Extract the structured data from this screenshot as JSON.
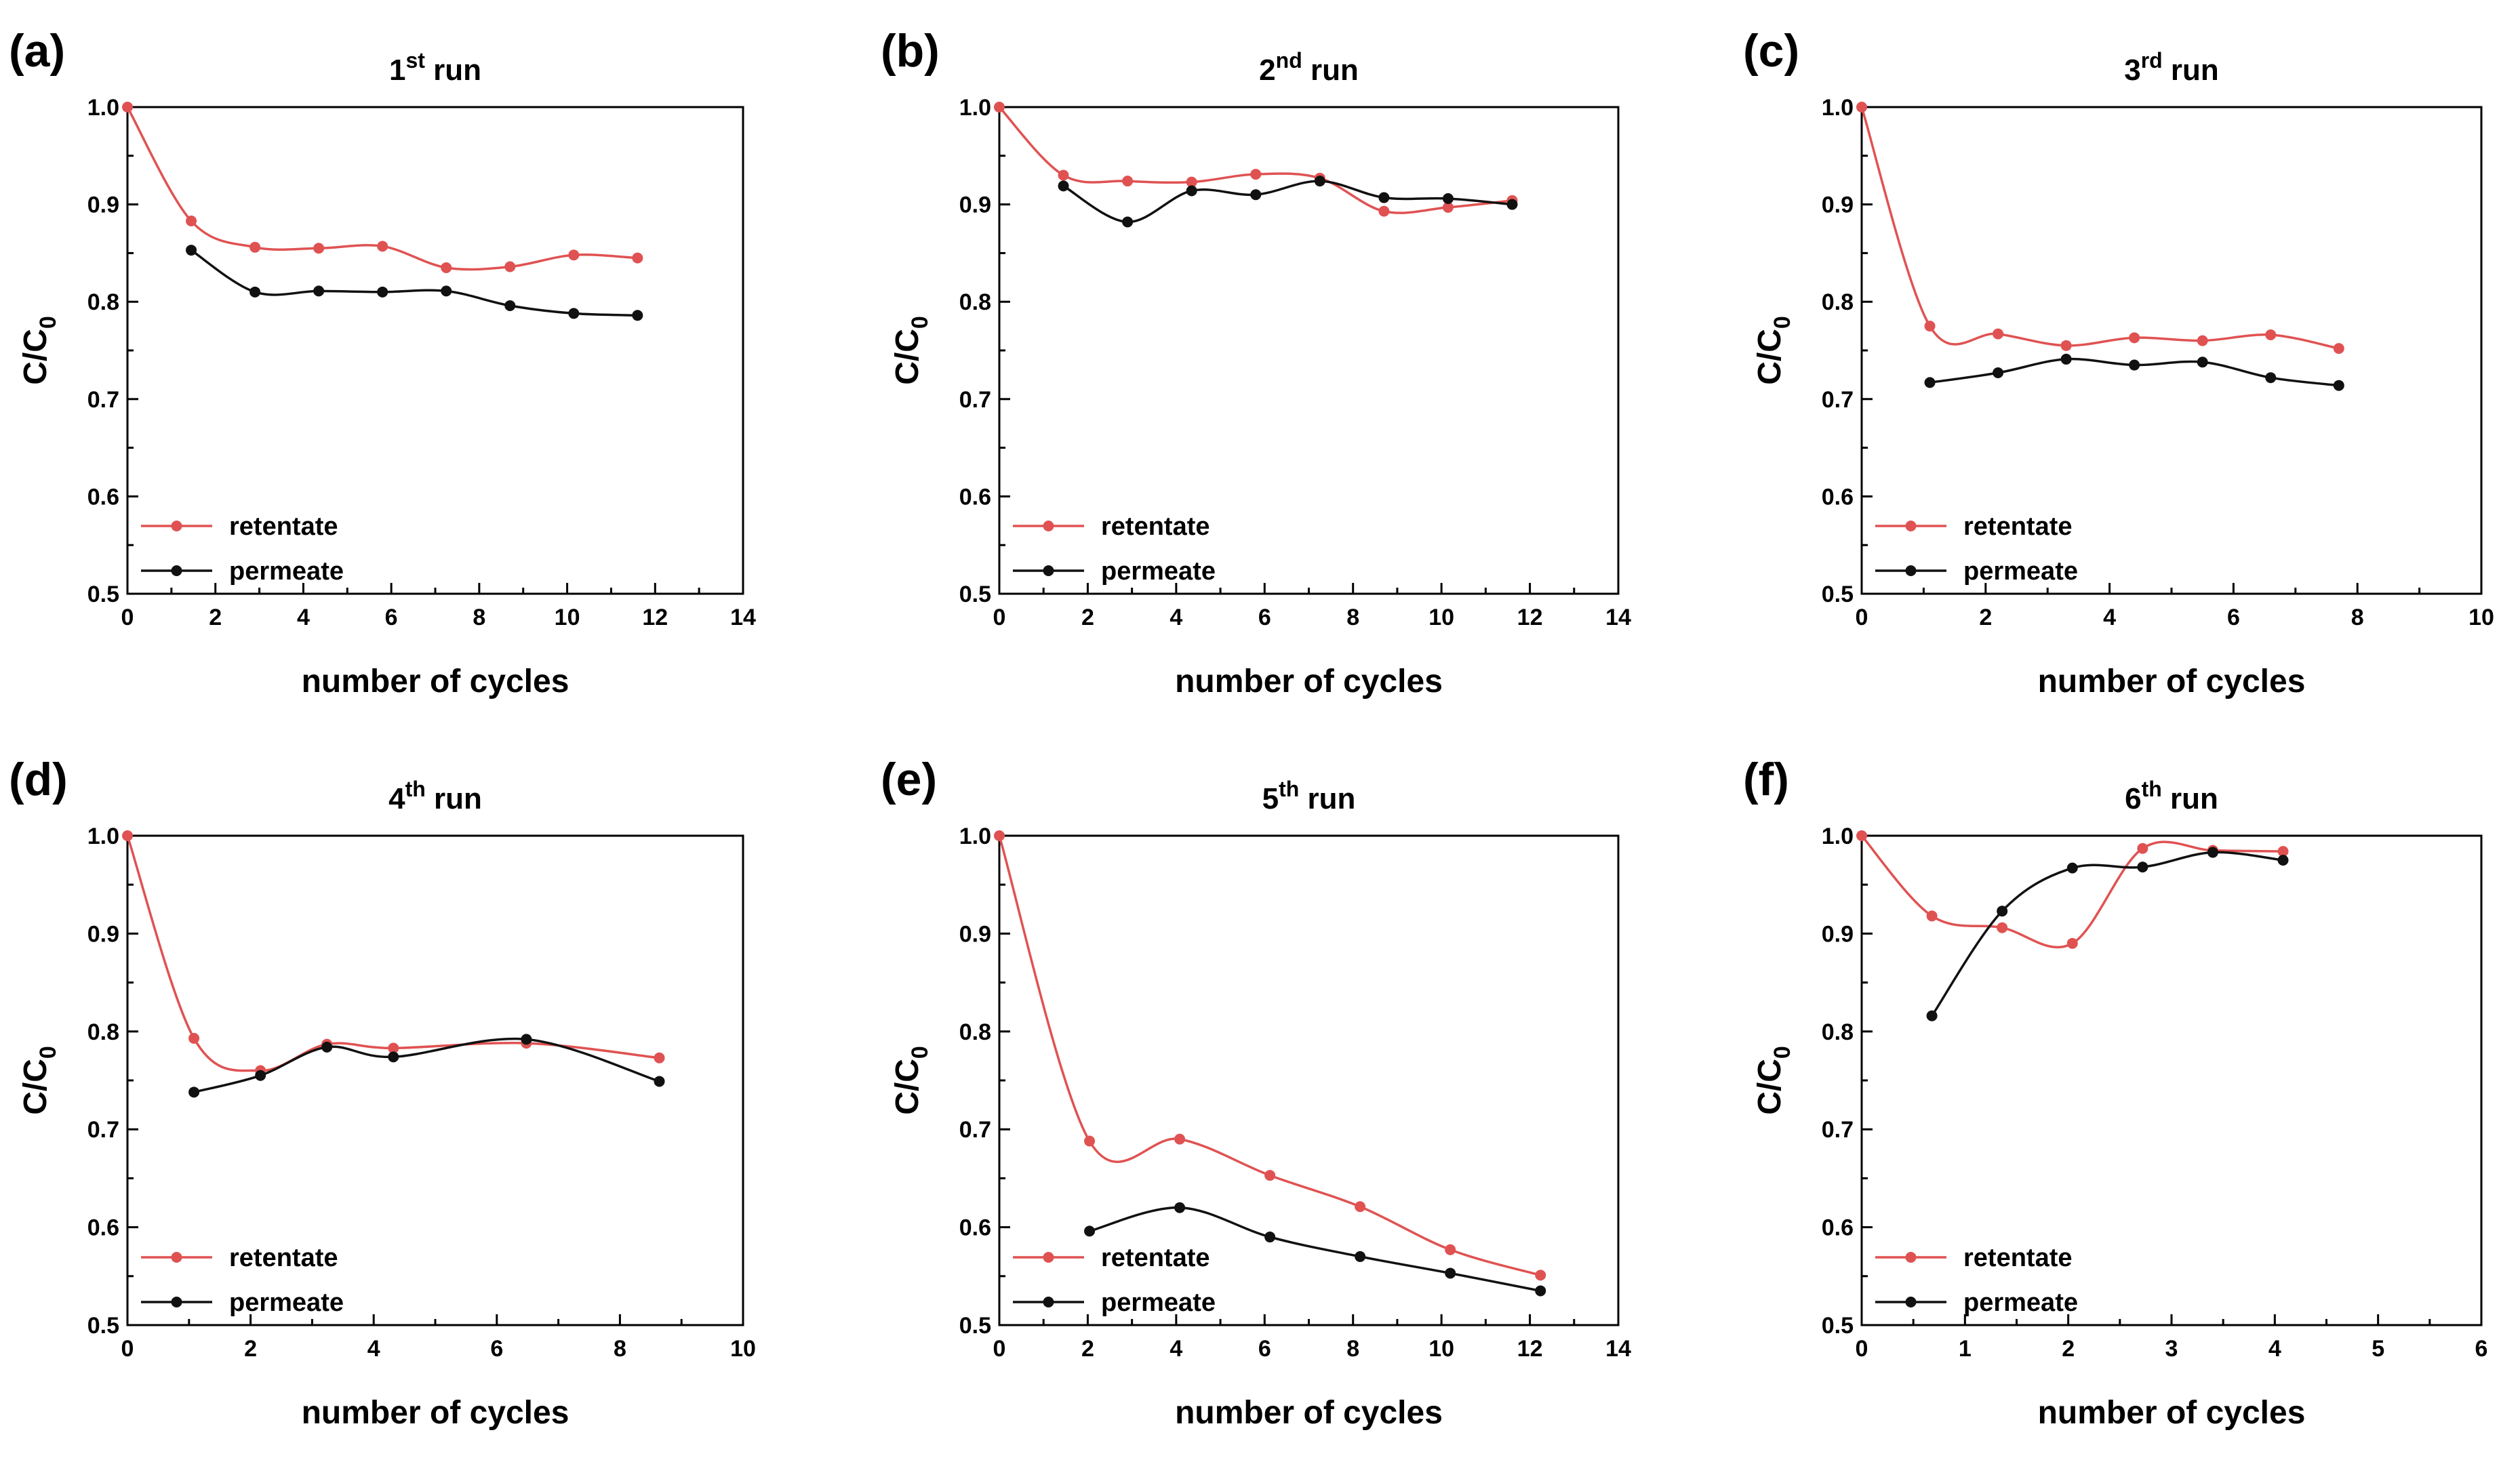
{
  "chart_data": [
    {
      "panel": "(a)",
      "type": "line",
      "title_main": "1",
      "title_sup": "st",
      "title_rest": " run",
      "xlabel": "number of cycles",
      "ylabel_main": "C/C",
      "ylabel_sub": "0",
      "xlim": [
        0,
        14
      ],
      "xticks": [
        "0",
        "2",
        "4",
        "6",
        "8",
        "10",
        "12",
        "14"
      ],
      "ylim": [
        0.5,
        1.0
      ],
      "yticks": [
        "0.5",
        "0.6",
        "0.7",
        "0.8",
        "0.9",
        "1.0"
      ],
      "legend_position": "bottom-left",
      "series": [
        {
          "name": "retentate",
          "color": "#e05252",
          "x": [
            0,
            1.45,
            2.9,
            4.35,
            5.8,
            7.25,
            8.7,
            10.15,
            11.6
          ],
          "y": [
            1.0,
            0.883,
            0.856,
            0.855,
            0.857,
            0.835,
            0.836,
            0.848,
            0.845
          ]
        },
        {
          "name": "permeate",
          "color": "#111111",
          "x": [
            1.45,
            2.9,
            4.35,
            5.8,
            7.25,
            8.7,
            10.15,
            11.6
          ],
          "y": [
            0.853,
            0.81,
            0.811,
            0.81,
            0.811,
            0.796,
            0.788,
            0.786
          ]
        }
      ]
    },
    {
      "panel": "(b)",
      "type": "line",
      "title_main": "2",
      "title_sup": "nd",
      "title_rest": " run",
      "xlabel": "number of cycles",
      "ylabel_main": "C/C",
      "ylabel_sub": "0",
      "xlim": [
        0,
        14
      ],
      "xticks": [
        "0",
        "2",
        "4",
        "6",
        "8",
        "10",
        "12",
        "14"
      ],
      "ylim": [
        0.5,
        1.0
      ],
      "yticks": [
        "0.5",
        "0.6",
        "0.7",
        "0.8",
        "0.9",
        "1.0"
      ],
      "legend_position": "bottom-left",
      "series": [
        {
          "name": "retentate",
          "color": "#e05252",
          "x": [
            0,
            1.45,
            2.9,
            4.35,
            5.8,
            7.25,
            8.7,
            10.15,
            11.6
          ],
          "y": [
            1.0,
            0.93,
            0.924,
            0.923,
            0.931,
            0.927,
            0.893,
            0.897,
            0.904
          ]
        },
        {
          "name": "permeate",
          "color": "#111111",
          "x": [
            1.45,
            2.9,
            4.35,
            5.8,
            7.25,
            8.7,
            10.15,
            11.6
          ],
          "y": [
            0.919,
            0.882,
            0.914,
            0.91,
            0.924,
            0.907,
            0.906,
            0.9
          ]
        }
      ]
    },
    {
      "panel": "(c)",
      "type": "line",
      "title_main": "3",
      "title_sup": "rd",
      "title_rest": " run",
      "xlabel": "number of cycles",
      "ylabel_main": "C/C",
      "ylabel_sub": "0",
      "xlim": [
        0,
        10
      ],
      "xticks": [
        "0",
        "2",
        "4",
        "6",
        "8",
        "10"
      ],
      "ylim": [
        0.5,
        1.0
      ],
      "yticks": [
        "0.5",
        "0.6",
        "0.7",
        "0.8",
        "0.9",
        "1.0"
      ],
      "legend_position": "bottom-left",
      "series": [
        {
          "name": "retentate",
          "color": "#e05252",
          "x": [
            0,
            1.1,
            2.2,
            3.3,
            4.4,
            5.5,
            6.6,
            7.7
          ],
          "y": [
            1.0,
            0.775,
            0.767,
            0.755,
            0.763,
            0.76,
            0.766,
            0.752
          ]
        },
        {
          "name": "permeate",
          "color": "#111111",
          "x": [
            1.1,
            2.2,
            3.3,
            4.4,
            5.5,
            6.6,
            7.7
          ],
          "y": [
            0.717,
            0.727,
            0.741,
            0.735,
            0.738,
            0.722,
            0.714
          ]
        }
      ]
    },
    {
      "panel": "(d)",
      "type": "line",
      "title_main": "4",
      "title_sup": "th",
      "title_rest": " run",
      "xlabel": "number of cycles",
      "ylabel_main": "C/C",
      "ylabel_sub": "0",
      "xlim": [
        0,
        10
      ],
      "xticks": [
        "0",
        "2",
        "4",
        "6",
        "8",
        "10"
      ],
      "ylim": [
        0.5,
        1.0
      ],
      "yticks": [
        "0.5",
        "0.6",
        "0.7",
        "0.8",
        "0.9",
        "1.0"
      ],
      "legend_position": "bottom-left",
      "series": [
        {
          "name": "retentate",
          "color": "#e05252",
          "x": [
            0,
            1.08,
            2.16,
            3.24,
            4.32,
            6.48,
            8.64
          ],
          "y": [
            1.0,
            0.793,
            0.76,
            0.787,
            0.783,
            0.788,
            0.773
          ]
        },
        {
          "name": "permeate",
          "color": "#111111",
          "x": [
            1.08,
            2.16,
            3.24,
            4.32,
            6.48,
            8.64
          ],
          "y": [
            0.738,
            0.755,
            0.784,
            0.774,
            0.792,
            0.749
          ]
        }
      ]
    },
    {
      "panel": "(e)",
      "type": "line",
      "title_main": "5",
      "title_sup": "th",
      "title_rest": " run",
      "xlabel": "number of cycles",
      "ylabel_main": "C/C",
      "ylabel_sub": "0",
      "xlim": [
        0,
        14
      ],
      "xticks": [
        "0",
        "2",
        "4",
        "6",
        "8",
        "10",
        "12",
        "14"
      ],
      "ylim": [
        0.5,
        1.0
      ],
      "yticks": [
        "0.5",
        "0.6",
        "0.7",
        "0.8",
        "0.9",
        "1.0"
      ],
      "legend_position": "bottom-left",
      "series": [
        {
          "name": "retentate",
          "color": "#e05252",
          "x": [
            0,
            2.04,
            4.08,
            6.12,
            8.16,
            10.2,
            12.24
          ],
          "y": [
            1.0,
            0.688,
            0.69,
            0.653,
            0.621,
            0.577,
            0.551
          ]
        },
        {
          "name": "permeate",
          "color": "#111111",
          "x": [
            2.04,
            4.08,
            6.12,
            8.16,
            10.2,
            12.24
          ],
          "y": [
            0.596,
            0.62,
            0.59,
            0.57,
            0.553,
            0.535
          ]
        }
      ]
    },
    {
      "panel": "(f)",
      "type": "line",
      "title_main": "6",
      "title_sup": "th",
      "title_rest": " run",
      "xlabel": "number of cycles",
      "ylabel_main": "C/C",
      "ylabel_sub": "0",
      "xlim": [
        0,
        6
      ],
      "xticks": [
        "0",
        "1",
        "2",
        "3",
        "4",
        "5",
        "6"
      ],
      "ylim": [
        0.5,
        1.0
      ],
      "yticks": [
        "0.5",
        "0.6",
        "0.7",
        "0.8",
        "0.9",
        "1.0"
      ],
      "legend_position": "bottom-left",
      "series": [
        {
          "name": "retentate",
          "color": "#e05252",
          "x": [
            0,
            0.68,
            1.36,
            2.04,
            2.72,
            3.4,
            4.08
          ],
          "y": [
            1.0,
            0.918,
            0.906,
            0.89,
            0.987,
            0.985,
            0.984
          ]
        },
        {
          "name": "permeate",
          "color": "#111111",
          "x": [
            0.68,
            1.36,
            2.04,
            2.72,
            3.4,
            4.08
          ],
          "y": [
            0.816,
            0.923,
            0.967,
            0.968,
            0.983,
            0.975
          ]
        }
      ]
    }
  ]
}
